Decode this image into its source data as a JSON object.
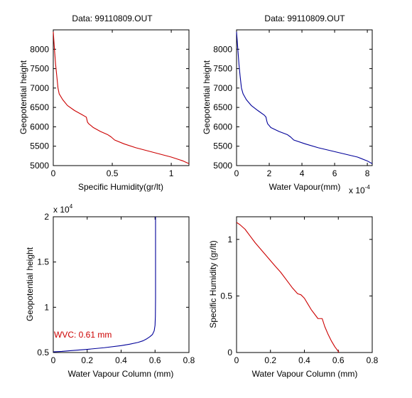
{
  "chart_data": [
    {
      "type": "line",
      "title": "Data: 99110809.OUT",
      "xlabel": "Specific Humidity(gr/lt)",
      "ylabel": "Geopotential height",
      "xlim": [
        0,
        1.15
      ],
      "ylim": [
        5000,
        8500
      ],
      "xticks": [
        0,
        0.5,
        1
      ],
      "yticks": [
        5000,
        5500,
        6000,
        6500,
        7000,
        7500,
        8000
      ],
      "xtick_labels": [
        "0",
        "0.5",
        "1"
      ],
      "ytick_labels": [
        "5000",
        "5500",
        "6000",
        "6500",
        "7000",
        "7500",
        "8000"
      ],
      "color": "#cc0000",
      "series": [
        {
          "x": [
            0.0,
            0.01,
            0.02,
            0.03,
            0.04,
            0.05,
            0.08,
            0.12,
            0.18,
            0.24,
            0.28,
            0.29,
            0.3,
            0.34,
            0.4,
            0.46,
            0.49,
            0.52,
            0.6,
            0.7,
            0.8,
            0.9,
            1.0,
            1.1,
            1.15
          ],
          "y": [
            8450,
            8000,
            7600,
            7300,
            7000,
            6850,
            6700,
            6550,
            6420,
            6320,
            6250,
            6120,
            6080,
            5980,
            5880,
            5800,
            5740,
            5660,
            5560,
            5460,
            5380,
            5300,
            5220,
            5120,
            5050
          ]
        }
      ]
    },
    {
      "type": "line",
      "title": "Data: 99110809.OUT",
      "xlabel": "Water Vapour(mm)",
      "ylabel": "Geopotential height",
      "exponent_label": "x 10",
      "exponent_power": "-4",
      "xlim": [
        0,
        8.3
      ],
      "ylim": [
        5000,
        8500
      ],
      "xticks": [
        0,
        2,
        4,
        6,
        8
      ],
      "yticks": [
        5000,
        5500,
        6000,
        6500,
        7000,
        7500,
        8000
      ],
      "xtick_labels": [
        "0",
        "2",
        "4",
        "6",
        "8"
      ],
      "ytick_labels": [
        "5000",
        "5500",
        "6000",
        "6500",
        "7000",
        "7500",
        "8000"
      ],
      "color": "#000099",
      "series": [
        {
          "x": [
            0.0,
            0.08,
            0.15,
            0.22,
            0.3,
            0.4,
            0.6,
            0.9,
            1.3,
            1.7,
            1.8,
            1.85,
            1.9,
            2.1,
            2.6,
            3.1,
            3.3,
            3.5,
            4.2,
            5.0,
            5.8,
            6.6,
            7.4,
            8.0,
            8.3
          ],
          "y": [
            8450,
            8000,
            7600,
            7300,
            7000,
            6850,
            6700,
            6550,
            6420,
            6300,
            6250,
            6150,
            6080,
            5980,
            5880,
            5800,
            5740,
            5660,
            5560,
            5460,
            5380,
            5300,
            5220,
            5120,
            5050
          ]
        }
      ]
    },
    {
      "type": "line",
      "title": "",
      "xlabel": "Water Vapour Column (mm)",
      "ylabel": "Geopotential height",
      "exponent_label": "x 10",
      "exponent_power": "4",
      "annotation": "WVC: 0.61 mm",
      "annotation_color": "#cc0000",
      "xlim": [
        0,
        0.8
      ],
      "ylim": [
        0.5,
        2.0
      ],
      "xticks": [
        0,
        0.2,
        0.4,
        0.6,
        0.8
      ],
      "yticks": [
        0.5,
        1,
        1.5,
        2
      ],
      "xtick_labels": [
        "0",
        "0.2",
        "0.4",
        "0.6",
        "0.8"
      ],
      "ytick_labels": [
        "0.5",
        "1",
        "1.5",
        "2"
      ],
      "color": "#000099",
      "series": [
        {
          "x": [
            0.0,
            0.05,
            0.1,
            0.2,
            0.3,
            0.4,
            0.45,
            0.5,
            0.53,
            0.55,
            0.57,
            0.585,
            0.595,
            0.6,
            0.602,
            0.603,
            0.603,
            0.603
          ],
          "y": [
            0.507,
            0.512,
            0.52,
            0.535,
            0.553,
            0.576,
            0.592,
            0.612,
            0.63,
            0.65,
            0.675,
            0.7,
            0.74,
            0.8,
            0.9,
            1.1,
            1.5,
            2.0
          ]
        }
      ]
    },
    {
      "type": "line",
      "title": "",
      "xlabel": "Water Vapour Column (mm)",
      "ylabel": "Specific Humidity (gr/lt)",
      "xlim": [
        0,
        0.8
      ],
      "ylim": [
        0,
        1.2
      ],
      "xticks": [
        0,
        0.2,
        0.4,
        0.6,
        0.8
      ],
      "yticks": [
        0,
        0.5,
        1
      ],
      "xtick_labels": [
        "0",
        "0.2",
        "0.4",
        "0.6",
        "0.8"
      ],
      "ytick_labels": [
        "0",
        "0.5",
        "1"
      ],
      "color": "#cc0000",
      "series": [
        {
          "x": [
            0.0,
            0.02,
            0.05,
            0.08,
            0.11,
            0.15,
            0.19,
            0.23,
            0.26,
            0.3,
            0.33,
            0.36,
            0.38,
            0.4,
            0.42,
            0.44,
            0.46,
            0.48,
            0.495,
            0.505,
            0.52,
            0.54,
            0.56,
            0.58,
            0.6,
            0.605
          ],
          "y": [
            1.15,
            1.13,
            1.09,
            1.03,
            0.97,
            0.9,
            0.83,
            0.76,
            0.71,
            0.63,
            0.57,
            0.52,
            0.51,
            0.48,
            0.43,
            0.38,
            0.34,
            0.3,
            0.3,
            0.3,
            0.23,
            0.16,
            0.1,
            0.05,
            0.01,
            0.0
          ]
        }
      ]
    }
  ]
}
